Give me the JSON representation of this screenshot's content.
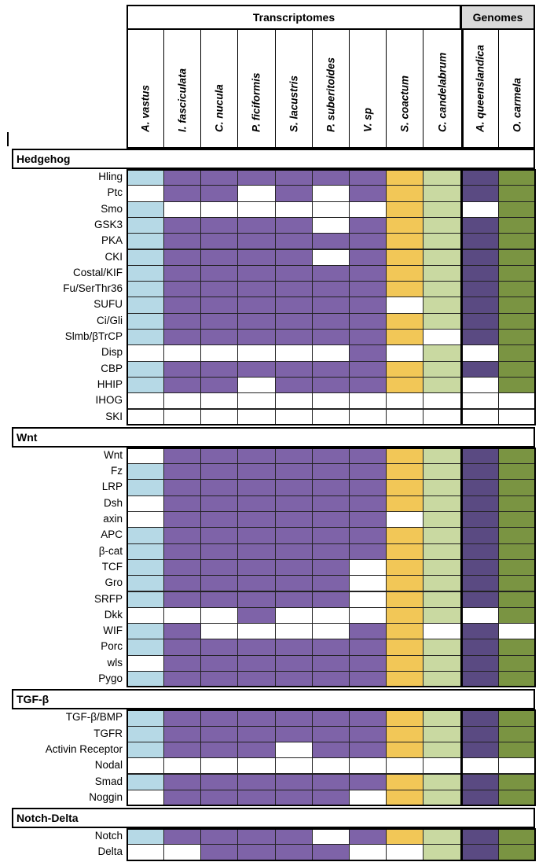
{
  "chart_data": {
    "type": "table",
    "groups": [
      {
        "label": "Transcriptomes",
        "columns": [
          0,
          1,
          2,
          3,
          4,
          5,
          6,
          7,
          8
        ]
      },
      {
        "label": "Genomes",
        "columns": [
          9,
          10
        ]
      }
    ],
    "columns": [
      {
        "name": "A. vastus",
        "color": "#b6d9e6"
      },
      {
        "name": "I. fasciculata",
        "color": "#7e63a8"
      },
      {
        "name": "C. nucula",
        "color": "#7e63a8"
      },
      {
        "name": "P. ficiformis",
        "color": "#7e63a8"
      },
      {
        "name": "S. lacustris",
        "color": "#7e63a8"
      },
      {
        "name": "P. suberitoides",
        "color": "#7e63a8"
      },
      {
        "name": "V. sp",
        "color": "#7e63a8"
      },
      {
        "name": "S. coactum",
        "color": "#f2c757"
      },
      {
        "name": "C. candelabrum",
        "color": "#c9d9a1"
      },
      {
        "name": "A. queenslandica",
        "color": "#5a4a82"
      },
      {
        "name": "O. carmela",
        "color": "#7a9442"
      }
    ],
    "legend": [],
    "sections": [
      {
        "title": "Hedgehog",
        "rows": [
          {
            "gene": "Hling",
            "presence": [
              1,
              1,
              1,
              1,
              1,
              1,
              1,
              1,
              1,
              1,
              1
            ]
          },
          {
            "gene": "Ptc",
            "presence": [
              0,
              1,
              1,
              0,
              1,
              0,
              1,
              1,
              1,
              1,
              1
            ]
          },
          {
            "gene": "Smo",
            "presence": [
              1,
              0,
              0,
              0,
              0,
              0,
              0,
              1,
              1,
              0,
              1
            ]
          },
          {
            "gene": "GSK3",
            "presence": [
              1,
              1,
              1,
              1,
              1,
              0,
              1,
              1,
              1,
              1,
              1
            ]
          },
          {
            "gene": "PKA",
            "presence": [
              1,
              1,
              1,
              1,
              1,
              1,
              1,
              1,
              1,
              1,
              1
            ]
          },
          {
            "gene": "CKI",
            "presence": [
              1,
              1,
              1,
              1,
              1,
              0,
              1,
              1,
              1,
              1,
              1
            ]
          },
          {
            "gene": "Costal/KIF",
            "presence": [
              1,
              1,
              1,
              1,
              1,
              1,
              1,
              1,
              1,
              1,
              1
            ]
          },
          {
            "gene": "Fu/SerThr36",
            "presence": [
              1,
              1,
              1,
              1,
              1,
              1,
              1,
              1,
              1,
              1,
              1
            ]
          },
          {
            "gene": "SUFU",
            "presence": [
              1,
              1,
              1,
              1,
              1,
              1,
              1,
              0,
              1,
              1,
              1
            ]
          },
          {
            "gene": "Ci/Gli",
            "presence": [
              1,
              1,
              1,
              1,
              1,
              1,
              1,
              1,
              1,
              1,
              1
            ]
          },
          {
            "gene": "Slmb/βTrCP",
            "presence": [
              1,
              1,
              1,
              1,
              1,
              1,
              1,
              1,
              0,
              1,
              1
            ]
          },
          {
            "gene": "Disp",
            "presence": [
              0,
              0,
              0,
              0,
              0,
              0,
              1,
              0,
              1,
              0,
              1
            ]
          },
          {
            "gene": "CBP",
            "presence": [
              1,
              1,
              1,
              1,
              1,
              1,
              1,
              1,
              1,
              1,
              1
            ]
          },
          {
            "gene": "HHIP",
            "presence": [
              1,
              1,
              1,
              0,
              1,
              1,
              1,
              1,
              1,
              0,
              1
            ]
          },
          {
            "gene": "IHOG",
            "presence": [
              0,
              0,
              0,
              0,
              0,
              0,
              0,
              0,
              0,
              0,
              0
            ]
          },
          {
            "gene": "SKI",
            "presence": [
              0,
              0,
              0,
              0,
              0,
              0,
              0,
              0,
              0,
              0,
              0
            ]
          }
        ]
      },
      {
        "title": "Wnt",
        "rows": [
          {
            "gene": "Wnt",
            "presence": [
              0,
              1,
              1,
              1,
              1,
              1,
              1,
              1,
              1,
              1,
              1
            ]
          },
          {
            "gene": "Fz",
            "presence": [
              1,
              1,
              1,
              1,
              1,
              1,
              1,
              1,
              1,
              1,
              1
            ]
          },
          {
            "gene": "LRP",
            "presence": [
              1,
              1,
              1,
              1,
              1,
              1,
              1,
              1,
              1,
              1,
              1
            ]
          },
          {
            "gene": "Dsh",
            "presence": [
              0,
              1,
              1,
              1,
              1,
              1,
              1,
              1,
              1,
              1,
              1
            ]
          },
          {
            "gene": "axin",
            "presence": [
              0,
              1,
              1,
              1,
              1,
              1,
              1,
              0,
              1,
              1,
              1
            ]
          },
          {
            "gene": "APC",
            "presence": [
              1,
              1,
              1,
              1,
              1,
              1,
              1,
              1,
              1,
              1,
              1
            ]
          },
          {
            "gene": "β-cat",
            "presence": [
              1,
              1,
              1,
              1,
              1,
              1,
              1,
              1,
              1,
              1,
              1
            ]
          },
          {
            "gene": "TCF",
            "presence": [
              1,
              1,
              1,
              1,
              1,
              1,
              0,
              1,
              1,
              1,
              1
            ]
          },
          {
            "gene": "Gro",
            "presence": [
              1,
              1,
              1,
              1,
              1,
              1,
              0,
              1,
              1,
              1,
              1
            ]
          },
          {
            "gene": "SRFP",
            "presence": [
              1,
              1,
              1,
              1,
              1,
              1,
              0,
              1,
              1,
              1,
              1
            ]
          },
          {
            "gene": "Dkk",
            "presence": [
              0,
              0,
              0,
              1,
              0,
              0,
              0,
              1,
              1,
              0,
              1
            ]
          },
          {
            "gene": "WIF",
            "presence": [
              1,
              1,
              0,
              0,
              0,
              0,
              1,
              1,
              0,
              1,
              0
            ]
          },
          {
            "gene": "Porc",
            "presence": [
              1,
              1,
              1,
              1,
              1,
              1,
              1,
              1,
              1,
              1,
              1
            ]
          },
          {
            "gene": "wls",
            "presence": [
              0,
              1,
              1,
              1,
              1,
              1,
              1,
              1,
              1,
              1,
              1
            ]
          },
          {
            "gene": "Pygo",
            "presence": [
              1,
              1,
              1,
              1,
              1,
              1,
              1,
              1,
              1,
              1,
              1
            ]
          }
        ]
      },
      {
        "title": "TGF-β",
        "rows": [
          {
            "gene": "TGF-β/BMP",
            "presence": [
              1,
              1,
              1,
              1,
              1,
              1,
              1,
              1,
              1,
              1,
              1
            ]
          },
          {
            "gene": "TGFR",
            "presence": [
              1,
              1,
              1,
              1,
              1,
              1,
              1,
              1,
              1,
              1,
              1
            ]
          },
          {
            "gene": "Activin Receptor",
            "presence": [
              1,
              1,
              1,
              1,
              0,
              1,
              1,
              1,
              1,
              1,
              1
            ]
          },
          {
            "gene": "Nodal",
            "presence": [
              0,
              0,
              0,
              0,
              0,
              0,
              0,
              0,
              0,
              0,
              0
            ]
          },
          {
            "gene": "Smad",
            "presence": [
              1,
              1,
              1,
              1,
              1,
              1,
              1,
              1,
              1,
              1,
              1
            ]
          },
          {
            "gene": "Noggin",
            "presence": [
              0,
              1,
              1,
              1,
              1,
              1,
              0,
              1,
              1,
              1,
              1
            ]
          }
        ]
      },
      {
        "title": "Notch-Delta",
        "rows": [
          {
            "gene": "Notch",
            "presence": [
              1,
              1,
              1,
              1,
              1,
              0,
              1,
              1,
              1,
              1,
              1
            ]
          },
          {
            "gene": "Delta",
            "presence": [
              0,
              0,
              1,
              1,
              1,
              1,
              0,
              0,
              1,
              1,
              1
            ]
          }
        ]
      }
    ]
  }
}
